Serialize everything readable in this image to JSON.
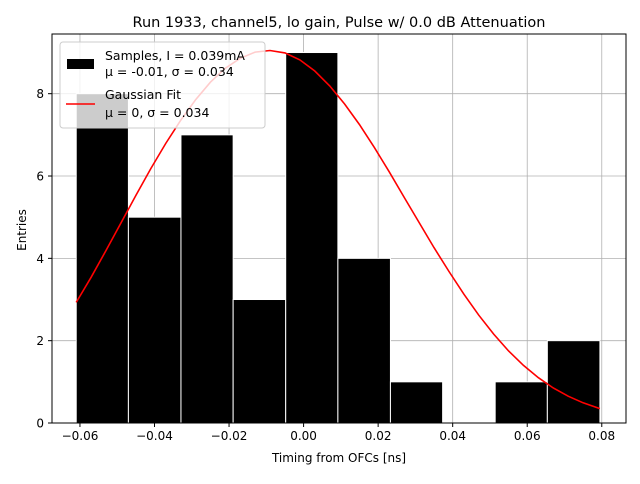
{
  "chart_data": {
    "type": "bar",
    "title": "Run 1933, channel5, lo gain, Pulse w/ 0.0 dB Attenuation",
    "xlabel": "Timing from OFCs [ns]",
    "ylabel": "Entries",
    "xlim": [
      -0.0675,
      0.0865
    ],
    "ylim": [
      0,
      9.45
    ],
    "xticks": [
      -0.06,
      -0.04,
      -0.02,
      0.0,
      0.02,
      0.04,
      0.06,
      0.08
    ],
    "xtick_labels": [
      "−0.06",
      "−0.04",
      "−0.02",
      "0.00",
      "0.02",
      "0.04",
      "0.06",
      "0.08"
    ],
    "yticks": [
      0,
      2,
      4,
      6,
      8
    ],
    "ytick_labels": [
      "0",
      "2",
      "4",
      "6",
      "8"
    ],
    "grid": true,
    "legend_position": "top-left",
    "bar_color": "#000000",
    "bar_edge_color": "#ffffff",
    "fit_color": "#ff0000",
    "histogram": {
      "bin_edges": [
        -0.061,
        -0.047,
        -0.0329,
        -0.0189,
        -0.0048,
        0.0092,
        0.0233,
        0.0373,
        0.0514,
        0.0654,
        0.0795
      ],
      "values": [
        8,
        5,
        7,
        3,
        9,
        4,
        1,
        0,
        1,
        2
      ]
    },
    "fit_curve": {
      "x": [
        -0.061,
        -0.057,
        -0.053,
        -0.049,
        -0.045,
        -0.041,
        -0.037,
        -0.033,
        -0.029,
        -0.025,
        -0.021,
        -0.017,
        -0.013,
        -0.009,
        -0.005,
        -0.001,
        0.003,
        0.007,
        0.011,
        0.015,
        0.019,
        0.023,
        0.027,
        0.031,
        0.035,
        0.039,
        0.043,
        0.047,
        0.051,
        0.055,
        0.059,
        0.063,
        0.067,
        0.071,
        0.075,
        0.0795
      ],
      "y": [
        2.93,
        3.54,
        4.19,
        4.86,
        5.53,
        6.18,
        6.79,
        7.35,
        7.85,
        8.28,
        8.62,
        8.86,
        9.01,
        9.05,
        8.99,
        8.82,
        8.55,
        8.19,
        7.75,
        7.25,
        6.69,
        6.1,
        5.48,
        4.87,
        4.26,
        3.68,
        3.13,
        2.62,
        2.16,
        1.75,
        1.4,
        1.1,
        0.85,
        0.65,
        0.49,
        0.35
      ]
    },
    "series": [
      {
        "name": "Samples, I = 0.039mA",
        "name_line2": "μ = -0.01, σ = 0.034"
      },
      {
        "name": "Gaussian Fit",
        "name_line2": "μ = 0, σ = 0.034"
      }
    ]
  }
}
